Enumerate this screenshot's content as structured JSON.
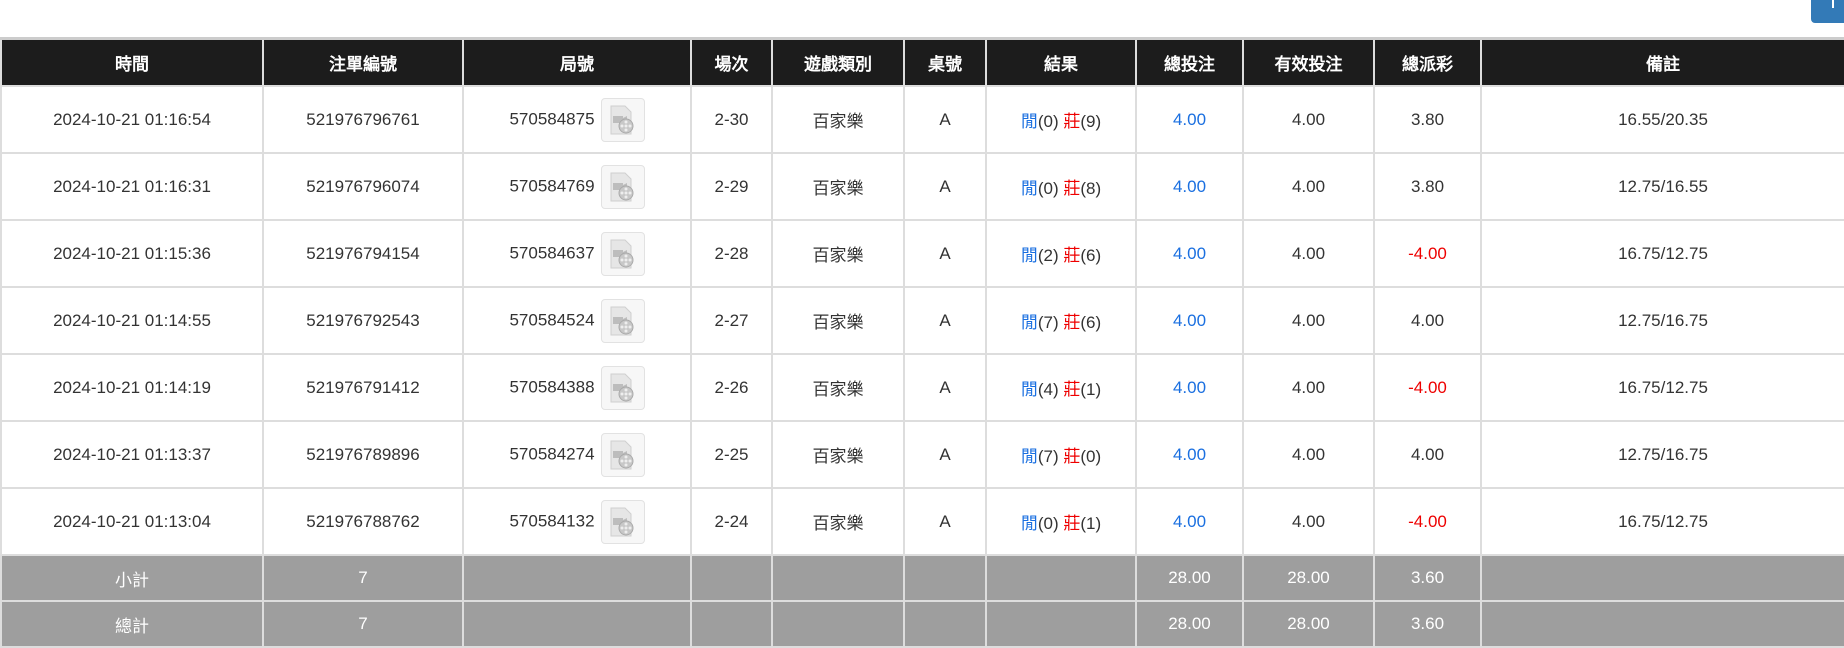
{
  "headers": [
    "時間",
    "注單編號",
    "局號",
    "場次",
    "遊戲類別",
    "桌號",
    "結果",
    "總投注",
    "有效投注",
    "總派彩",
    "備註"
  ],
  "rows": [
    {
      "time": "2024-10-21 01:16:54",
      "bet_id": "521976796761",
      "round": "570584875",
      "shoe": "2-30",
      "game": "百家樂",
      "table": "A",
      "player_label": "閒",
      "player": "(0)",
      "banker_label": "莊",
      "banker": "(9)",
      "total_bet": "4.00",
      "valid_bet": "4.00",
      "payout": "3.80",
      "payout_negative": false,
      "note": "16.55/20.35"
    },
    {
      "time": "2024-10-21 01:16:31",
      "bet_id": "521976796074",
      "round": "570584769",
      "shoe": "2-29",
      "game": "百家樂",
      "table": "A",
      "player_label": "閒",
      "player": "(0)",
      "banker_label": "莊",
      "banker": "(8)",
      "total_bet": "4.00",
      "valid_bet": "4.00",
      "payout": "3.80",
      "payout_negative": false,
      "note": "12.75/16.55"
    },
    {
      "time": "2024-10-21 01:15:36",
      "bet_id": "521976794154",
      "round": "570584637",
      "shoe": "2-28",
      "game": "百家樂",
      "table": "A",
      "player_label": "閒",
      "player": "(2)",
      "banker_label": "莊",
      "banker": "(6)",
      "total_bet": "4.00",
      "valid_bet": "4.00",
      "payout": "-4.00",
      "payout_negative": true,
      "note": "16.75/12.75"
    },
    {
      "time": "2024-10-21 01:14:55",
      "bet_id": "521976792543",
      "round": "570584524",
      "shoe": "2-27",
      "game": "百家樂",
      "table": "A",
      "player_label": "閒",
      "player": "(7)",
      "banker_label": "莊",
      "banker": "(6)",
      "total_bet": "4.00",
      "valid_bet": "4.00",
      "payout": "4.00",
      "payout_negative": false,
      "note": "12.75/16.75"
    },
    {
      "time": "2024-10-21 01:14:19",
      "bet_id": "521976791412",
      "round": "570584388",
      "shoe": "2-26",
      "game": "百家樂",
      "table": "A",
      "player_label": "閒",
      "player": "(4)",
      "banker_label": "莊",
      "banker": "(1)",
      "total_bet": "4.00",
      "valid_bet": "4.00",
      "payout": "-4.00",
      "payout_negative": true,
      "note": "16.75/12.75"
    },
    {
      "time": "2024-10-21 01:13:37",
      "bet_id": "521976789896",
      "round": "570584274",
      "shoe": "2-25",
      "game": "百家樂",
      "table": "A",
      "player_label": "閒",
      "player": "(7)",
      "banker_label": "莊",
      "banker": "(0)",
      "total_bet": "4.00",
      "valid_bet": "4.00",
      "payout": "4.00",
      "payout_negative": false,
      "note": "12.75/16.75"
    },
    {
      "time": "2024-10-21 01:13:04",
      "bet_id": "521976788762",
      "round": "570584132",
      "shoe": "2-24",
      "game": "百家樂",
      "table": "A",
      "player_label": "閒",
      "player": "(0)",
      "banker_label": "莊",
      "banker": "(1)",
      "total_bet": "4.00",
      "valid_bet": "4.00",
      "payout": "-4.00",
      "payout_negative": true,
      "note": "16.75/12.75"
    }
  ],
  "subtotal": {
    "label": "小計",
    "count": "7",
    "total_bet": "28.00",
    "valid_bet": "28.00",
    "payout": "3.60"
  },
  "total": {
    "label": "總計",
    "count": "7",
    "total_bet": "28.00",
    "valid_bet": "28.00",
    "payout": "3.60"
  },
  "colors": {
    "header_bg": "#1c1c1c",
    "footer_bg": "#9e9e9e",
    "player": "#1a6fe0",
    "banker": "#e00000",
    "negative": "#e00000",
    "top_button": "#337ab7"
  },
  "icons": {
    "replay": "video-file-icon"
  }
}
